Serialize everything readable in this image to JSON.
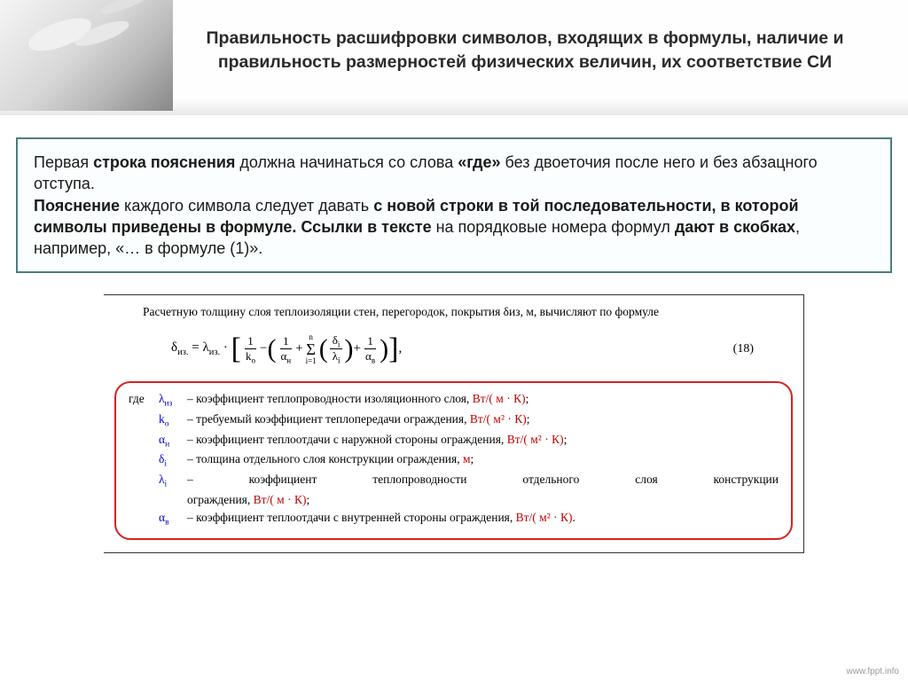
{
  "header": {
    "title": "Правильность расшифровки символов, входящих в формулы, наличие и правильность размерностей физических величин, их соответствие СИ"
  },
  "textbox": {
    "content_html": "Первая <b>строка пояснения</b> должна начинаться со слова <b>«где»</b> без двоеточия после него и без абзацного отступа.<br><b>Пояснение</b> каждого символа следует давать <b>с новой строки в той последовательности, в которой символы приведены в формуле. Ссылки в тексте</b> на порядковые номера формул <b>дают в скобках</b>, например, «… в формуле (1)»."
  },
  "formula_block": {
    "intro": "Расчетную толщину слоя теплоизоляции стен, перегородок, покрытия δиз, м, вычисляют по формуле",
    "equation_number": "(18)",
    "where_label": "где",
    "legend": [
      {
        "sym": "λ<sub>из</sub>",
        "text": "– коэффициент теплопроводности изоляционного слоя, ",
        "unit": "Вт/( м · К)",
        "tail": ";"
      },
      {
        "sym": "k<sub>о</sub>",
        "text": "– требуемый коэффициент теплопередачи ограждения, ",
        "unit": "Вт/( м² · К)",
        "tail": ";"
      },
      {
        "sym": "α<sub>н</sub>",
        "text": "– коэффициент теплоотдачи с наружной стороны ограждения, ",
        "unit": "Вт/( м² · К)",
        "tail": ";"
      },
      {
        "sym": "δ<sub>i</sub>",
        "text": "– толщина отдельного слоя конструкции ограждения, ",
        "unit": "м",
        "tail": ";"
      },
      {
        "sym": "λ<sub>i</sub>",
        "text_justify": "– коэффициент теплопроводности отдельного слоя конструкции",
        "text2": "ограждения, ",
        "unit": "Вт/( м · К)",
        "tail": ";"
      },
      {
        "sym": "α<sub>в</sub>",
        "text": "– коэффициент теплоотдачи с внутренней стороны ограждения, ",
        "unit": "Вт/( м² · К)",
        "tail": "."
      }
    ]
  },
  "footer": {
    "link": "www.fppt.info"
  },
  "colors": {
    "box_border": "#4d7d7d",
    "highlight_border": "#d82020",
    "symbol_color": "#0000cc",
    "unit_color": "#c00000"
  }
}
